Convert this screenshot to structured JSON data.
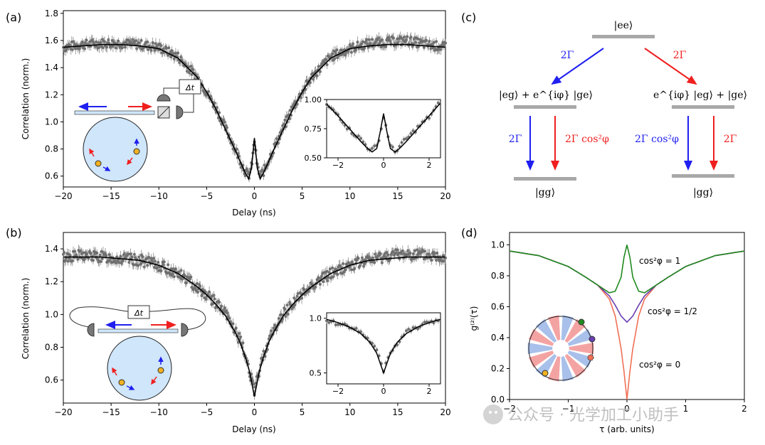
{
  "panel_labels": {
    "a": "(a)",
    "b": "(b)",
    "c": "(c)",
    "d": "(d)"
  },
  "colors": {
    "data": "#6e6e6e",
    "fit": "#000000",
    "blue": "#1f1ff0",
    "red": "#f01f1f",
    "green": "#1f8a1f",
    "purple": "#6a3fb0",
    "orange": "#f07055",
    "level": "#a8a8a8",
    "cell": "#cfe6fb"
  },
  "inset_labels": {
    "dt": "Δt"
  },
  "chart_data": [
    {
      "id": "a",
      "type": "scatter",
      "title": "",
      "xlabel": "Delay (ns)",
      "ylabel": "Correlation (norm.)",
      "xlim": [
        -20,
        20
      ],
      "ylim": [
        0.52,
        1.82
      ],
      "xticks": [
        -20,
        -15,
        -10,
        -5,
        0,
        5,
        10,
        15,
        20
      ],
      "xtick_labels": [
        "−20",
        "−15",
        "−10",
        "−5",
        "0",
        "5",
        "10",
        "15",
        "20"
      ],
      "yticks": [
        0.6,
        0.8,
        1.0,
        1.2,
        1.4,
        1.6,
        1.8
      ],
      "ytick_labels": [
        "0.6",
        "0.8",
        "1.0",
        "1.2",
        "1.4",
        "1.6",
        "1.8"
      ],
      "series": [
        {
          "name": "data",
          "x": [
            -20,
            -18,
            -16,
            -14,
            -12,
            -10,
            -8,
            -6,
            -5,
            -4,
            -3,
            -2,
            -1.5,
            -1,
            -0.6,
            -0.3,
            0,
            0.3,
            0.6,
            1,
            1.5,
            2,
            3,
            4,
            5,
            6,
            8,
            10,
            12,
            14,
            16,
            18,
            20
          ],
          "y": [
            1.55,
            1.57,
            1.58,
            1.58,
            1.57,
            1.55,
            1.48,
            1.33,
            1.22,
            1.1,
            0.95,
            0.8,
            0.72,
            0.64,
            0.6,
            0.67,
            0.86,
            0.67,
            0.6,
            0.64,
            0.72,
            0.8,
            0.95,
            1.1,
            1.22,
            1.33,
            1.48,
            1.54,
            1.58,
            1.59,
            1.6,
            1.57,
            1.55
          ]
        },
        {
          "name": "fit",
          "x": [
            -20,
            -18,
            -16,
            -14,
            -12,
            -10,
            -8,
            -6,
            -5,
            -4,
            -3,
            -2,
            -1.5,
            -1,
            -0.6,
            -0.3,
            0,
            0.3,
            0.6,
            1,
            1.5,
            2,
            3,
            4,
            5,
            6,
            8,
            10,
            12,
            14,
            16,
            18,
            20
          ],
          "y": [
            1.55,
            1.56,
            1.57,
            1.57,
            1.56,
            1.54,
            1.47,
            1.33,
            1.22,
            1.09,
            0.94,
            0.79,
            0.71,
            0.63,
            0.58,
            0.66,
            0.88,
            0.66,
            0.58,
            0.63,
            0.71,
            0.79,
            0.94,
            1.09,
            1.22,
            1.33,
            1.47,
            1.54,
            1.56,
            1.57,
            1.57,
            1.56,
            1.55
          ]
        }
      ],
      "inset": {
        "xlim": [
          -2.5,
          2.5
        ],
        "ylim": [
          0.5,
          1.0
        ],
        "xticks": [
          -2,
          0,
          2
        ],
        "xtick_labels": [
          "−2",
          "0",
          "2"
        ],
        "yticks": [
          0.5,
          0.75,
          1.0
        ],
        "ytick_labels": [
          "0.50",
          "0.75",
          "1.00"
        ],
        "x": [
          -2.5,
          -2,
          -1.5,
          -1,
          -0.7,
          -0.5,
          -0.3,
          -0.15,
          0,
          0.15,
          0.3,
          0.5,
          0.7,
          1,
          1.5,
          2,
          2.5
        ],
        "y_fit": [
          0.96,
          0.86,
          0.75,
          0.64,
          0.58,
          0.55,
          0.58,
          0.72,
          0.88,
          0.72,
          0.58,
          0.55,
          0.58,
          0.64,
          0.75,
          0.86,
          0.97
        ],
        "y_data": [
          0.95,
          0.87,
          0.74,
          0.66,
          0.59,
          0.57,
          0.6,
          0.7,
          0.85,
          0.74,
          0.6,
          0.55,
          0.6,
          0.66,
          0.76,
          0.85,
          0.98
        ]
      }
    },
    {
      "id": "b",
      "type": "scatter",
      "title": "",
      "xlabel": "Delay (ns)",
      "ylabel": "Correlation (norm.)",
      "xlim": [
        -20,
        20
      ],
      "ylim": [
        0.46,
        1.5
      ],
      "xticks": [
        -20,
        -15,
        -10,
        -5,
        0,
        5,
        10,
        15,
        20
      ],
      "xtick_labels": [
        "−20",
        "−15",
        "−10",
        "−5",
        "0",
        "5",
        "10",
        "15",
        "20"
      ],
      "yticks": [
        0.6,
        0.8,
        1.0,
        1.2,
        1.4
      ],
      "ytick_labels": [
        "0.6",
        "0.8",
        "1.0",
        "1.2",
        "1.4"
      ],
      "series": [
        {
          "name": "data",
          "x": [
            -20,
            -18,
            -16,
            -14,
            -12,
            -10,
            -8,
            -6,
            -5,
            -4,
            -3,
            -2,
            -1.5,
            -1,
            -0.5,
            0,
            0.5,
            1,
            1.5,
            2,
            3,
            4,
            5,
            6,
            8,
            10,
            12,
            14,
            16,
            18,
            20
          ],
          "y": [
            1.35,
            1.36,
            1.35,
            1.34,
            1.33,
            1.3,
            1.25,
            1.17,
            1.12,
            1.07,
            1.0,
            0.9,
            0.84,
            0.76,
            0.66,
            0.52,
            0.66,
            0.76,
            0.84,
            0.9,
            1.0,
            1.07,
            1.12,
            1.18,
            1.25,
            1.3,
            1.33,
            1.36,
            1.37,
            1.36,
            1.35
          ]
        },
        {
          "name": "fit",
          "x": [
            -20,
            -18,
            -16,
            -14,
            -12,
            -10,
            -8,
            -6,
            -5,
            -4,
            -3,
            -2,
            -1.5,
            -1,
            -0.5,
            0,
            0.5,
            1,
            1.5,
            2,
            3,
            4,
            5,
            6,
            8,
            10,
            12,
            14,
            16,
            18,
            20
          ],
          "y": [
            1.35,
            1.35,
            1.35,
            1.34,
            1.33,
            1.3,
            1.25,
            1.17,
            1.12,
            1.06,
            0.99,
            0.89,
            0.83,
            0.75,
            0.65,
            0.5,
            0.65,
            0.75,
            0.83,
            0.89,
            0.99,
            1.06,
            1.12,
            1.17,
            1.25,
            1.3,
            1.33,
            1.34,
            1.35,
            1.35,
            1.35
          ]
        }
      ],
      "inset": {
        "xlim": [
          -2.5,
          2.5
        ],
        "ylim": [
          0.4,
          1.05
        ],
        "xticks": [
          -2,
          0,
          2
        ],
        "xtick_labels": [
          "−2",
          "0",
          "2"
        ],
        "yticks": [
          0.5,
          1.0
        ],
        "ytick_labels": [
          "0.5",
          "1.0"
        ],
        "x": [
          -2.5,
          -2,
          -1.5,
          -1,
          -0.6,
          -0.3,
          -0.1,
          0,
          0.1,
          0.3,
          0.6,
          1,
          1.5,
          2,
          2.5
        ],
        "y_fit": [
          0.99,
          0.96,
          0.92,
          0.86,
          0.78,
          0.68,
          0.56,
          0.5,
          0.56,
          0.68,
          0.78,
          0.86,
          0.92,
          0.96,
          0.99
        ],
        "y_data": [
          0.98,
          0.95,
          0.93,
          0.87,
          0.79,
          0.7,
          0.58,
          0.52,
          0.6,
          0.69,
          0.77,
          0.88,
          0.91,
          0.97,
          0.98
        ]
      }
    },
    {
      "id": "c",
      "type": "diagram",
      "levels": {
        "ee": "|ee⟩",
        "left_mid": "|eg⟩ + e^{iφ} |ge⟩",
        "right_mid": "e^{iφ} |eg⟩ + |ge⟩",
        "gg_left": "|gg⟩",
        "gg_right": "|gg⟩"
      },
      "rates": {
        "top_left": "2Γ",
        "top_right": "2Γ",
        "left_blue": "2Γ",
        "left_red": "2Γ cos²φ",
        "right_blue": "2Γ cos²φ",
        "right_red": "2Γ"
      }
    },
    {
      "id": "d",
      "type": "line",
      "xlabel": "τ (arb. units)",
      "ylabel": "g⁽²⁾(τ)",
      "xlim": [
        -2,
        2
      ],
      "ylim": [
        0,
        1.08
      ],
      "xticks": [
        -2,
        -1,
        0,
        1,
        2
      ],
      "xtick_labels": [
        "−2",
        "−1",
        "0",
        "1",
        "2"
      ],
      "yticks": [
        0.0,
        0.2,
        0.4,
        0.6,
        0.8,
        1.0
      ],
      "ytick_labels": [
        "0.0",
        "0.2",
        "0.4",
        "0.6",
        "0.8",
        "1.0"
      ],
      "series": [
        {
          "name": "cos²φ = 1",
          "color": "#1f8a1f",
          "x": [
            -2,
            -1.5,
            -1,
            -0.7,
            -0.5,
            -0.3,
            -0.2,
            -0.1,
            -0.05,
            0,
            0.05,
            0.1,
            0.2,
            0.3,
            0.5,
            0.7,
            1,
            1.5,
            2
          ],
          "y": [
            0.96,
            0.93,
            0.86,
            0.79,
            0.74,
            0.69,
            0.7,
            0.79,
            0.92,
            1.0,
            0.92,
            0.79,
            0.7,
            0.69,
            0.74,
            0.79,
            0.86,
            0.93,
            0.96
          ]
        },
        {
          "name": "cos²φ = 1/2",
          "color": "#6a3fb0",
          "x": [
            -2,
            -1.5,
            -1,
            -0.7,
            -0.5,
            -0.3,
            -0.2,
            -0.1,
            0,
            0.1,
            0.2,
            0.3,
            0.5,
            0.7,
            1,
            1.5,
            2
          ],
          "y": [
            0.96,
            0.93,
            0.86,
            0.79,
            0.74,
            0.67,
            0.61,
            0.54,
            0.5,
            0.54,
            0.61,
            0.67,
            0.74,
            0.79,
            0.86,
            0.93,
            0.96
          ]
        },
        {
          "name": "cos²φ = 0",
          "color": "#f07055",
          "x": [
            -2,
            -1.5,
            -1,
            -0.7,
            -0.5,
            -0.3,
            -0.2,
            -0.1,
            -0.05,
            0,
            0.05,
            0.1,
            0.2,
            0.3,
            0.5,
            0.7,
            1,
            1.5,
            2
          ],
          "y": [
            0.96,
            0.93,
            0.86,
            0.79,
            0.74,
            0.65,
            0.54,
            0.33,
            0.18,
            0.0,
            0.18,
            0.33,
            0.54,
            0.65,
            0.74,
            0.79,
            0.86,
            0.93,
            0.96
          ]
        }
      ],
      "labels": {
        "cos1": "cos²φ = 1",
        "cos_half": "cos²φ = 1/2",
        "cos0": "cos²φ = 0"
      }
    }
  ],
  "watermark": "公众号 · 光学加工小助手"
}
